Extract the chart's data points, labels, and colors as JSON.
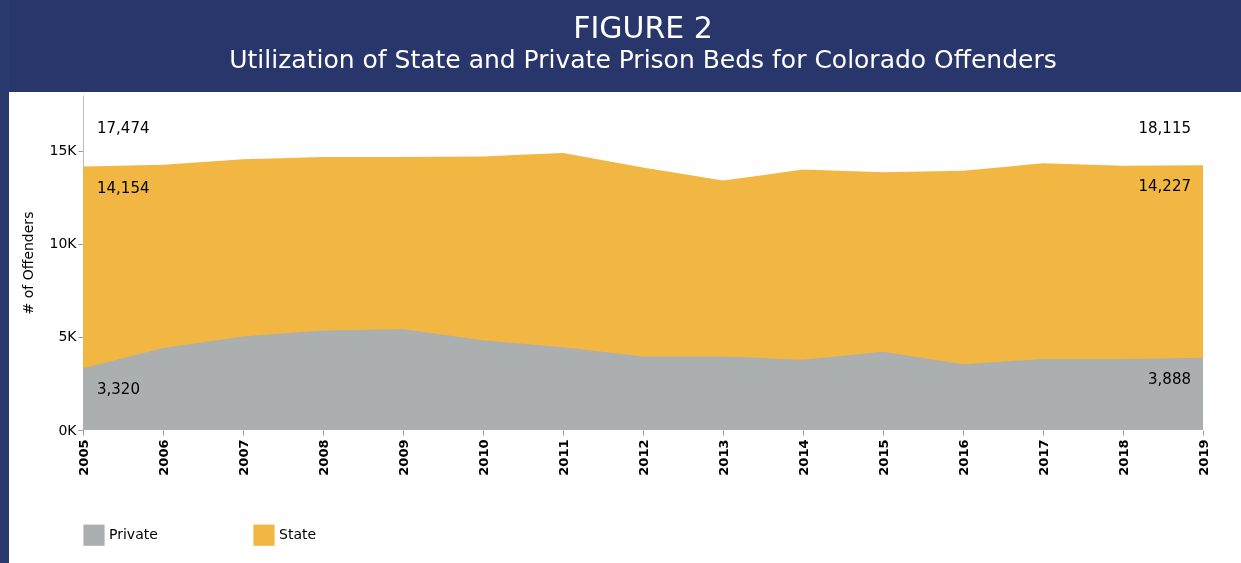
{
  "chart_data": {
    "type": "area",
    "title": "FIGURE 2",
    "subtitle": "Utilization of State and Private Prison Beds for Colorado Offenders",
    "ylabel": "# of Offenders",
    "categories": [
      "2005",
      "2006",
      "2007",
      "2008",
      "2009",
      "2010",
      "2011",
      "2012",
      "2013",
      "2014",
      "2015",
      "2016",
      "2017",
      "2018",
      "2019"
    ],
    "series": [
      {
        "name": "Private",
        "color": "#abafb0",
        "values": [
          3320,
          4400,
          5030,
          5350,
          5410,
          4820,
          4440,
          3950,
          3950,
          3780,
          4200,
          3530,
          3820,
          3820,
          3888
        ],
        "value_labels": [
          "3,320",
          null,
          null,
          null,
          null,
          null,
          null,
          null,
          null,
          null,
          null,
          null,
          null,
          null,
          "3,888"
        ]
      },
      {
        "name": "State",
        "color": "#f2b643",
        "values": [
          14154,
          14250,
          14550,
          14670,
          14670,
          14700,
          14880,
          14100,
          13400,
          14000,
          13850,
          13930,
          14330,
          14200,
          14227
        ],
        "value_labels": [
          "14,154",
          null,
          null,
          null,
          null,
          null,
          null,
          null,
          null,
          null,
          null,
          null,
          null,
          null,
          "14,227"
        ]
      }
    ],
    "annotations": [
      "17,474",
      "18,115"
    ],
    "ylim": [
      0,
      18000
    ],
    "yticks": [
      {
        "value": 0,
        "label": "0K"
      },
      {
        "value": 5000,
        "label": "5K"
      },
      {
        "value": 10000,
        "label": "10K"
      },
      {
        "value": 15000,
        "label": "15K"
      }
    ],
    "grid": false,
    "legend": "bottom left"
  }
}
